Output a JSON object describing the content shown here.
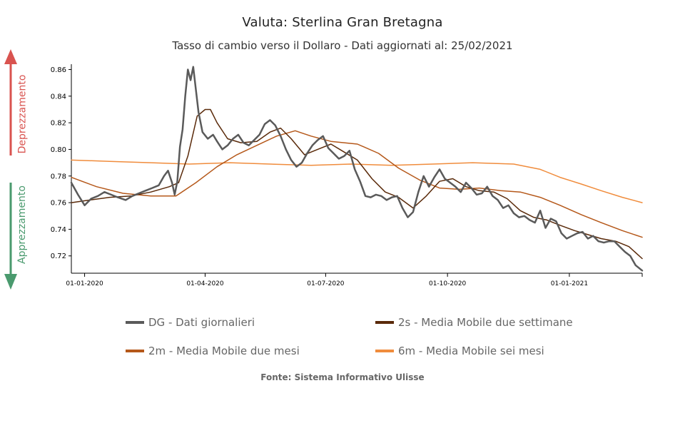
{
  "header": {
    "title": "Valuta: Sterlina Gran Bretagna",
    "subtitle": "Tasso di cambio verso il Dollaro - Dati aggiornati al: 25/02/2021"
  },
  "side_labels": {
    "up": "Deprezzamento",
    "down": "Apprezzamento",
    "up_color": "#d9534f",
    "down_color": "#4a9a6e"
  },
  "legend": [
    {
      "label": "DG - Dati giornalieri",
      "color": "#5a5a5a"
    },
    {
      "label": "2s - Media Mobile due settimane",
      "color": "#5a2a0a"
    },
    {
      "label": "2m - Media Mobile due mesi",
      "color": "#b5581a"
    },
    {
      "label": "6m - Media Mobile sei mesi",
      "color": "#f08c3c"
    }
  ],
  "source": "Fonte: Sistema Informativo Ulisse",
  "chart_data": {
    "type": "line",
    "x_tick_labels": [
      "01-01-2020",
      "01-04-2020",
      "01-07-2020",
      "01-10-2020",
      "01-01-2021"
    ],
    "x_ticks": [
      "2020-01-01",
      "2020-04-01",
      "2020-07-01",
      "2020-10-01",
      "2021-01-01"
    ],
    "xlim": [
      "2019-12-22",
      "2021-02-25"
    ],
    "y_tick_labels": [
      "0.72",
      "0.74",
      "0.76",
      "0.78",
      "0.80",
      "0.82",
      "0.84",
      "0.86"
    ],
    "ylim": [
      0.707,
      0.864
    ],
    "grid": false,
    "series": [
      {
        "name": "DG - Dati giornalieri",
        "color": "#5a5a5a",
        "points": [
          [
            "2019-12-22",
            0.775
          ],
          [
            "2019-12-27",
            0.766
          ],
          [
            "2020-01-01",
            0.758
          ],
          [
            "2020-01-06",
            0.763
          ],
          [
            "2020-01-11",
            0.765
          ],
          [
            "2020-01-16",
            0.768
          ],
          [
            "2020-01-21",
            0.766
          ],
          [
            "2020-01-26",
            0.764
          ],
          [
            "2020-02-01",
            0.762
          ],
          [
            "2020-02-06",
            0.765
          ],
          [
            "2020-02-11",
            0.767
          ],
          [
            "2020-02-16",
            0.769
          ],
          [
            "2020-02-21",
            0.771
          ],
          [
            "2020-02-26",
            0.773
          ],
          [
            "2020-03-01",
            0.78
          ],
          [
            "2020-03-04",
            0.784
          ],
          [
            "2020-03-07",
            0.775
          ],
          [
            "2020-03-09",
            0.766
          ],
          [
            "2020-03-11",
            0.776
          ],
          [
            "2020-03-13",
            0.802
          ],
          [
            "2020-03-15",
            0.815
          ],
          [
            "2020-03-17",
            0.84
          ],
          [
            "2020-03-19",
            0.86
          ],
          [
            "2020-03-21",
            0.852
          ],
          [
            "2020-03-23",
            0.862
          ],
          [
            "2020-03-25",
            0.845
          ],
          [
            "2020-03-27",
            0.828
          ],
          [
            "2020-03-30",
            0.813
          ],
          [
            "2020-04-03",
            0.808
          ],
          [
            "2020-04-07",
            0.811
          ],
          [
            "2020-04-10",
            0.806
          ],
          [
            "2020-04-14",
            0.8
          ],
          [
            "2020-04-18",
            0.803
          ],
          [
            "2020-04-22",
            0.808
          ],
          [
            "2020-04-26",
            0.811
          ],
          [
            "2020-04-30",
            0.805
          ],
          [
            "2020-05-04",
            0.803
          ],
          [
            "2020-05-08",
            0.807
          ],
          [
            "2020-05-12",
            0.811
          ],
          [
            "2020-05-16",
            0.819
          ],
          [
            "2020-05-20",
            0.822
          ],
          [
            "2020-05-24",
            0.818
          ],
          [
            "2020-05-28",
            0.81
          ],
          [
            "2020-06-01",
            0.8
          ],
          [
            "2020-06-05",
            0.792
          ],
          [
            "2020-06-09",
            0.787
          ],
          [
            "2020-06-13",
            0.79
          ],
          [
            "2020-06-17",
            0.797
          ],
          [
            "2020-06-21",
            0.803
          ],
          [
            "2020-06-25",
            0.807
          ],
          [
            "2020-06-29",
            0.81
          ],
          [
            "2020-07-03",
            0.801
          ],
          [
            "2020-07-07",
            0.797
          ],
          [
            "2020-07-11",
            0.793
          ],
          [
            "2020-07-15",
            0.795
          ],
          [
            "2020-07-19",
            0.799
          ],
          [
            "2020-07-23",
            0.785
          ],
          [
            "2020-07-27",
            0.776
          ],
          [
            "2020-07-31",
            0.765
          ],
          [
            "2020-08-04",
            0.764
          ],
          [
            "2020-08-08",
            0.766
          ],
          [
            "2020-08-12",
            0.765
          ],
          [
            "2020-08-16",
            0.762
          ],
          [
            "2020-08-20",
            0.764
          ],
          [
            "2020-08-24",
            0.765
          ],
          [
            "2020-08-28",
            0.756
          ],
          [
            "2020-09-01",
            0.749
          ],
          [
            "2020-09-05",
            0.753
          ],
          [
            "2020-09-09",
            0.768
          ],
          [
            "2020-09-13",
            0.78
          ],
          [
            "2020-09-17",
            0.772
          ],
          [
            "2020-09-21",
            0.779
          ],
          [
            "2020-09-25",
            0.785
          ],
          [
            "2020-09-29",
            0.778
          ],
          [
            "2020-10-03",
            0.775
          ],
          [
            "2020-10-07",
            0.772
          ],
          [
            "2020-10-11",
            0.768
          ],
          [
            "2020-10-15",
            0.775
          ],
          [
            "2020-10-19",
            0.771
          ],
          [
            "2020-10-23",
            0.766
          ],
          [
            "2020-10-27",
            0.767
          ],
          [
            "2020-10-31",
            0.772
          ],
          [
            "2020-11-04",
            0.765
          ],
          [
            "2020-11-08",
            0.762
          ],
          [
            "2020-11-12",
            0.756
          ],
          [
            "2020-11-16",
            0.758
          ],
          [
            "2020-11-20",
            0.752
          ],
          [
            "2020-11-24",
            0.749
          ],
          [
            "2020-11-28",
            0.75
          ],
          [
            "2020-12-02",
            0.747
          ],
          [
            "2020-12-06",
            0.745
          ],
          [
            "2020-12-10",
            0.754
          ],
          [
            "2020-12-14",
            0.741
          ],
          [
            "2020-12-18",
            0.748
          ],
          [
            "2020-12-22",
            0.746
          ],
          [
            "2020-12-26",
            0.737
          ],
          [
            "2020-12-30",
            0.733
          ],
          [
            "2021-01-03",
            0.735
          ],
          [
            "2021-01-07",
            0.737
          ],
          [
            "2021-01-11",
            0.738
          ],
          [
            "2021-01-15",
            0.733
          ],
          [
            "2021-01-19",
            0.735
          ],
          [
            "2021-01-23",
            0.731
          ],
          [
            "2021-01-27",
            0.73
          ],
          [
            "2021-01-31",
            0.731
          ],
          [
            "2021-02-04",
            0.731
          ],
          [
            "2021-02-08",
            0.727
          ],
          [
            "2021-02-12",
            0.723
          ],
          [
            "2021-02-16",
            0.72
          ],
          [
            "2021-02-20",
            0.713
          ],
          [
            "2021-02-25",
            0.709
          ]
        ]
      },
      {
        "name": "2s - Media Mobile due settimane",
        "color": "#5a2a0a",
        "points": [
          [
            "2019-12-22",
            0.76
          ],
          [
            "2020-01-05",
            0.762
          ],
          [
            "2020-01-20",
            0.764
          ],
          [
            "2020-02-05",
            0.765
          ],
          [
            "2020-02-20",
            0.768
          ],
          [
            "2020-03-05",
            0.772
          ],
          [
            "2020-03-12",
            0.775
          ],
          [
            "2020-03-19",
            0.795
          ],
          [
            "2020-03-26",
            0.825
          ],
          [
            "2020-04-01",
            0.83
          ],
          [
            "2020-04-05",
            0.83
          ],
          [
            "2020-04-10",
            0.82
          ],
          [
            "2020-04-18",
            0.808
          ],
          [
            "2020-04-28",
            0.805
          ],
          [
            "2020-05-10",
            0.806
          ],
          [
            "2020-05-20",
            0.813
          ],
          [
            "2020-05-28",
            0.816
          ],
          [
            "2020-06-05",
            0.808
          ],
          [
            "2020-06-15",
            0.796
          ],
          [
            "2020-06-25",
            0.8
          ],
          [
            "2020-07-05",
            0.804
          ],
          [
            "2020-07-15",
            0.798
          ],
          [
            "2020-07-25",
            0.792
          ],
          [
            "2020-08-05",
            0.778
          ],
          [
            "2020-08-15",
            0.768
          ],
          [
            "2020-08-25",
            0.764
          ],
          [
            "2020-09-05",
            0.756
          ],
          [
            "2020-09-15",
            0.765
          ],
          [
            "2020-09-25",
            0.776
          ],
          [
            "2020-10-05",
            0.778
          ],
          [
            "2020-10-15",
            0.772
          ],
          [
            "2020-10-25",
            0.769
          ],
          [
            "2020-11-05",
            0.768
          ],
          [
            "2020-11-15",
            0.763
          ],
          [
            "2020-11-25",
            0.754
          ],
          [
            "2020-12-05",
            0.749
          ],
          [
            "2020-12-15",
            0.747
          ],
          [
            "2020-12-25",
            0.743
          ],
          [
            "2021-01-05",
            0.739
          ],
          [
            "2021-01-15",
            0.736
          ],
          [
            "2021-01-25",
            0.733
          ],
          [
            "2021-02-05",
            0.731
          ],
          [
            "2021-02-15",
            0.727
          ],
          [
            "2021-02-25",
            0.718
          ]
        ]
      },
      {
        "name": "2m - Media Mobile due mesi",
        "color": "#b5581a",
        "points": [
          [
            "2019-12-22",
            0.779
          ],
          [
            "2020-01-10",
            0.772
          ],
          [
            "2020-01-30",
            0.767
          ],
          [
            "2020-02-20",
            0.765
          ],
          [
            "2020-03-10",
            0.765
          ],
          [
            "2020-03-25",
            0.775
          ],
          [
            "2020-04-10",
            0.787
          ],
          [
            "2020-04-25",
            0.796
          ],
          [
            "2020-05-10",
            0.803
          ],
          [
            "2020-05-25",
            0.81
          ],
          [
            "2020-06-08",
            0.814
          ],
          [
            "2020-06-20",
            0.81
          ],
          [
            "2020-07-05",
            0.806
          ],
          [
            "2020-07-25",
            0.804
          ],
          [
            "2020-08-10",
            0.797
          ],
          [
            "2020-08-25",
            0.786
          ],
          [
            "2020-09-10",
            0.777
          ],
          [
            "2020-09-25",
            0.771
          ],
          [
            "2020-10-10",
            0.77
          ],
          [
            "2020-10-25",
            0.771
          ],
          [
            "2020-11-10",
            0.769
          ],
          [
            "2020-11-25",
            0.768
          ],
          [
            "2020-12-10",
            0.764
          ],
          [
            "2020-12-25",
            0.758
          ],
          [
            "2021-01-10",
            0.751
          ],
          [
            "2021-01-25",
            0.745
          ],
          [
            "2021-02-10",
            0.739
          ],
          [
            "2021-02-25",
            0.734
          ]
        ]
      },
      {
        "name": "6m - Media Mobile sei mesi",
        "color": "#f08c3c",
        "points": [
          [
            "2019-12-22",
            0.792
          ],
          [
            "2020-01-20",
            0.791
          ],
          [
            "2020-02-20",
            0.79
          ],
          [
            "2020-03-20",
            0.789
          ],
          [
            "2020-04-20",
            0.79
          ],
          [
            "2020-05-20",
            0.789
          ],
          [
            "2020-06-20",
            0.788
          ],
          [
            "2020-07-20",
            0.789
          ],
          [
            "2020-08-20",
            0.788
          ],
          [
            "2020-09-20",
            0.789
          ],
          [
            "2020-10-20",
            0.79
          ],
          [
            "2020-11-20",
            0.789
          ],
          [
            "2020-12-10",
            0.785
          ],
          [
            "2020-12-25",
            0.779
          ],
          [
            "2021-01-10",
            0.774
          ],
          [
            "2021-01-25",
            0.769
          ],
          [
            "2021-02-10",
            0.764
          ],
          [
            "2021-02-25",
            0.76
          ]
        ]
      }
    ]
  }
}
